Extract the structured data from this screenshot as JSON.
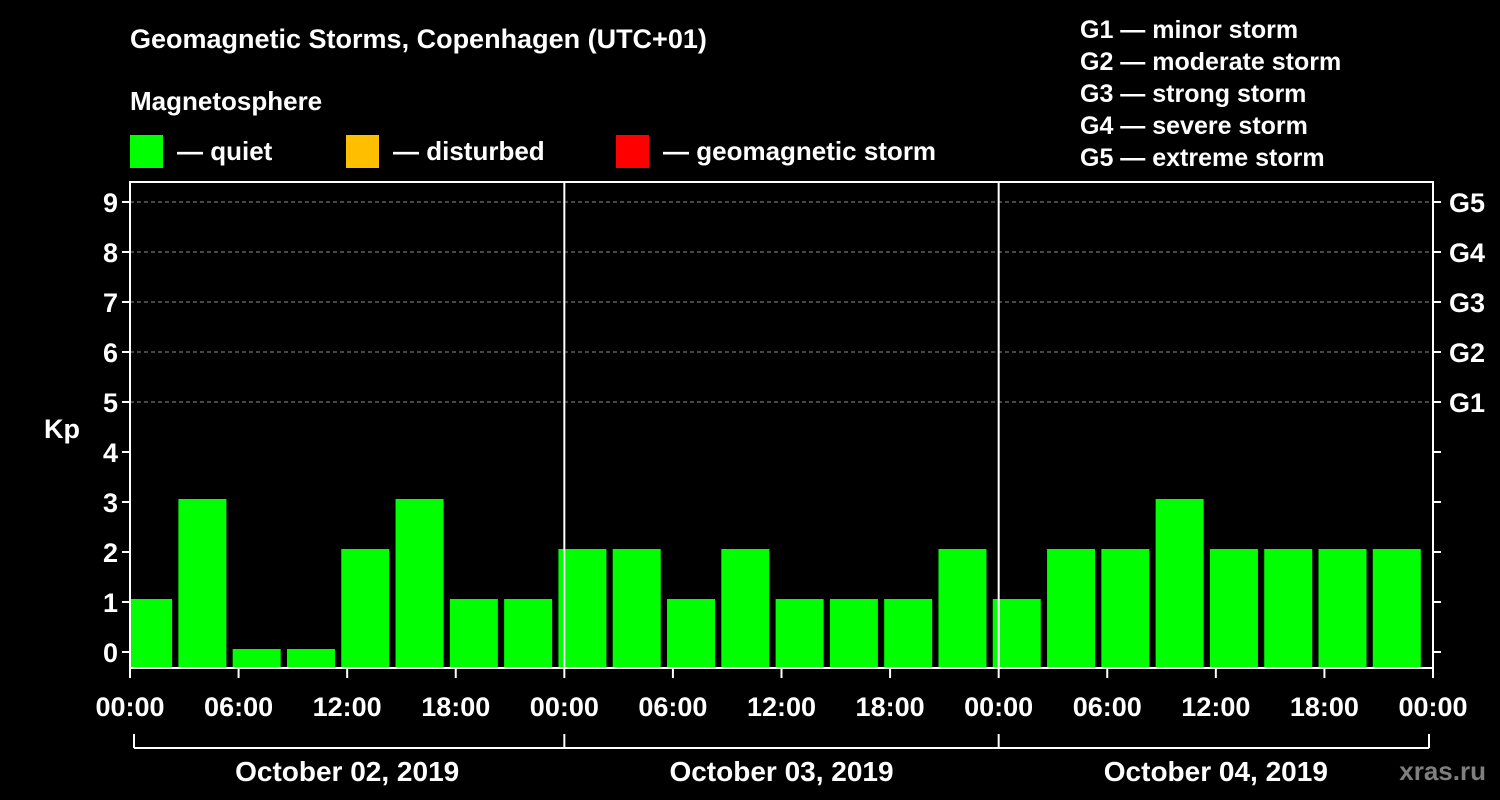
{
  "title": "Geomagnetic Storms, Copenhagen (UTC+01)",
  "subtitle": "Magnetosphere",
  "legend": [
    {
      "label": "— quiet",
      "color": "#00ff00"
    },
    {
      "label": "— disturbed",
      "color": "#ffbf00"
    },
    {
      "label": "— geomagnetic storm",
      "color": "#ff0000"
    }
  ],
  "storm_scale": [
    "G1 — minor storm",
    "G2 — moderate storm",
    "G3 — strong storm",
    "G4 — severe storm",
    "G5 — extreme storm"
  ],
  "watermark": "xras.ru",
  "chart_data": {
    "type": "bar",
    "ylabel": "Kp",
    "ylim": [
      0,
      9
    ],
    "yticks": [
      0,
      1,
      2,
      3,
      4,
      5,
      6,
      7,
      8,
      9
    ],
    "right_ticks": [
      {
        "value": 5,
        "label": "G1"
      },
      {
        "value": 6,
        "label": "G2"
      },
      {
        "value": 7,
        "label": "G3"
      },
      {
        "value": 8,
        "label": "G4"
      },
      {
        "value": 9,
        "label": "G5"
      }
    ],
    "xticks": [
      "00:00",
      "06:00",
      "12:00",
      "18:00",
      "00:00",
      "06:00",
      "12:00",
      "18:00",
      "00:00",
      "06:00",
      "12:00",
      "18:00",
      "00:00"
    ],
    "days": [
      "October 02, 2019",
      "October 03, 2019",
      "October 04, 2019"
    ],
    "grid": "dashed horizontal",
    "x_hours": [
      1,
      4,
      7,
      10,
      13,
      16,
      19,
      22,
      25,
      28,
      31,
      34,
      37,
      40,
      43,
      46,
      49,
      52,
      55,
      58,
      61,
      64,
      67,
      70
    ],
    "values": [
      1,
      3,
      0,
      0,
      2,
      3,
      1,
      1,
      2,
      2,
      1,
      2,
      1,
      1,
      1,
      2,
      1,
      2,
      2,
      3,
      2,
      2,
      2,
      2
    ],
    "colors": [
      "#00ff00",
      "#00ff00",
      "#00ff00",
      "#00ff00",
      "#00ff00",
      "#00ff00",
      "#00ff00",
      "#00ff00",
      "#00ff00",
      "#00ff00",
      "#00ff00",
      "#00ff00",
      "#00ff00",
      "#00ff00",
      "#00ff00",
      "#00ff00",
      "#00ff00",
      "#00ff00",
      "#00ff00",
      "#00ff00",
      "#00ff00",
      "#00ff00",
      "#00ff00",
      "#00ff00"
    ]
  }
}
